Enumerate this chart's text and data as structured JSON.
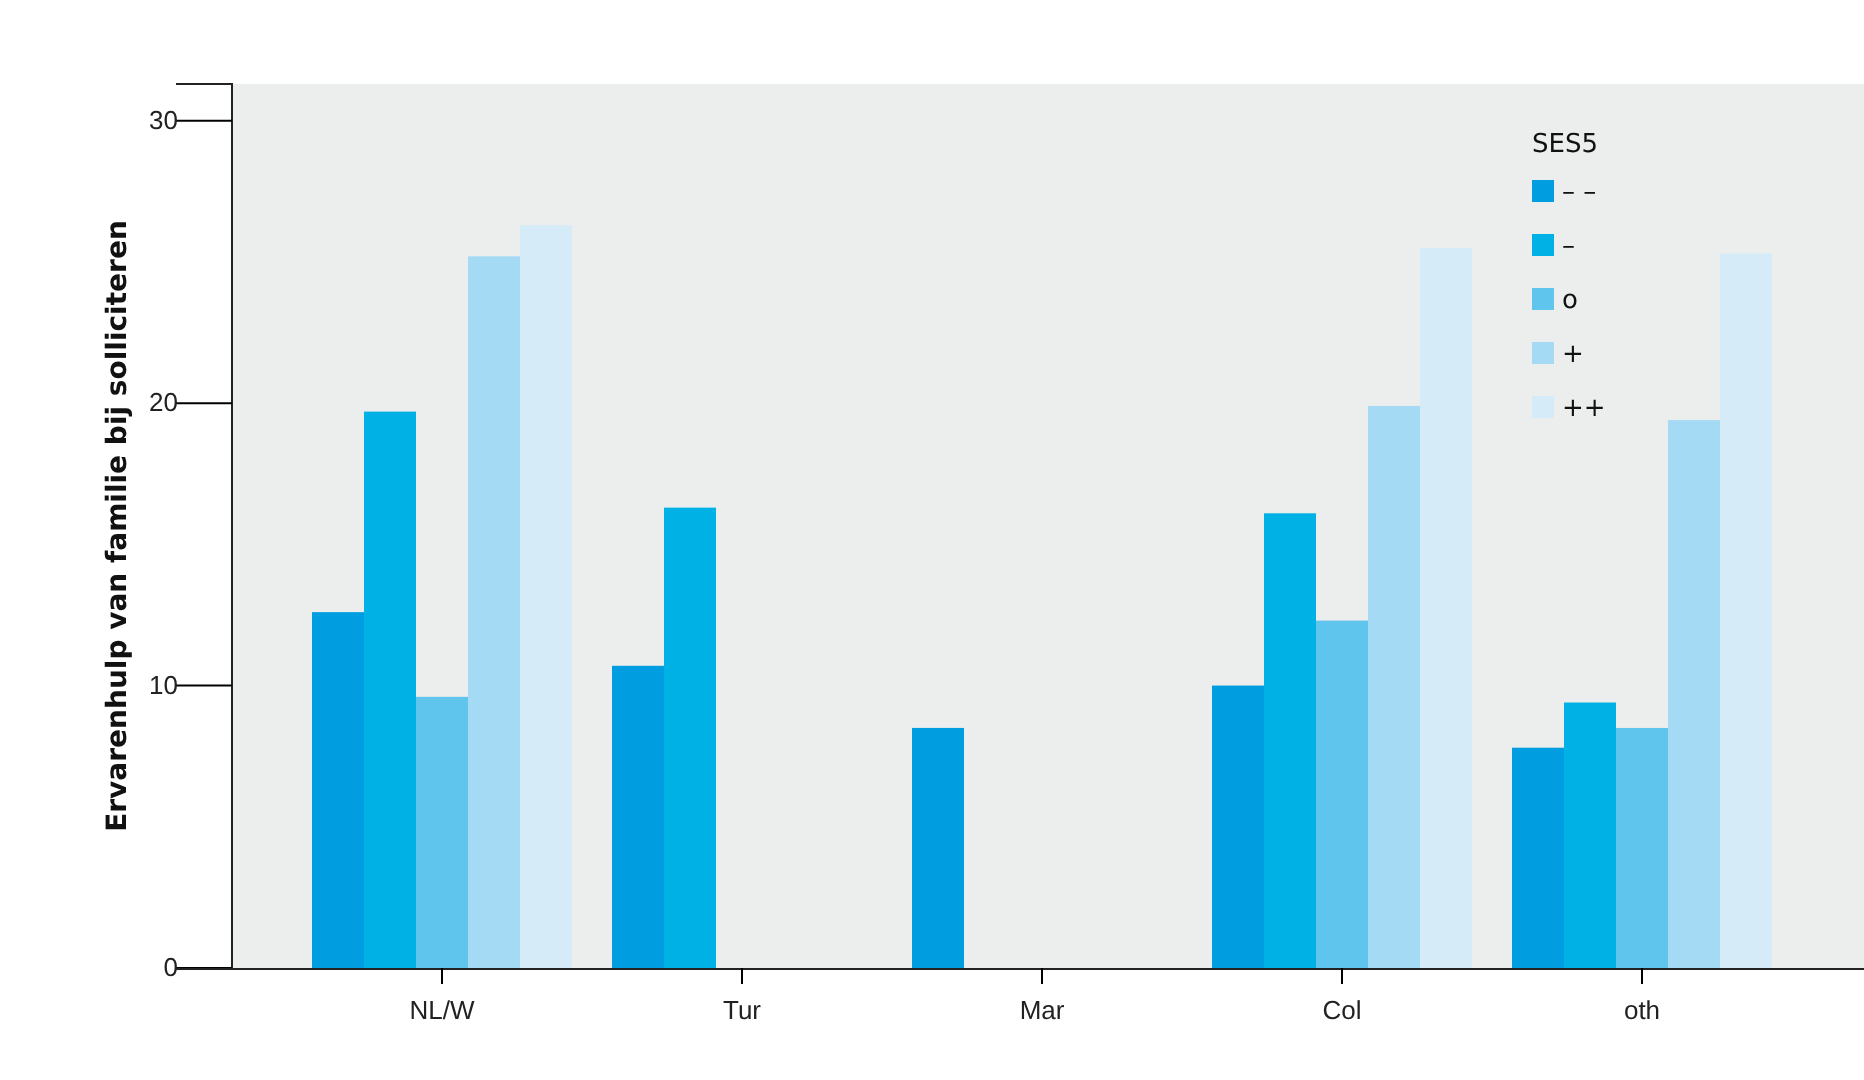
{
  "chart_data": {
    "type": "bar",
    "ylabel": "Ervarenhulp van familie bij solliciteren",
    "legend_title": "SES5",
    "legend": "top right",
    "categories": [
      "NL/W",
      "Tur",
      "Mar",
      "Col",
      "oth"
    ],
    "ylim": [
      0,
      31.3
    ],
    "yticks": [
      0,
      10,
      20,
      30
    ],
    "grid": false,
    "series": [
      {
        "name": "– –",
        "color": "#009ee0",
        "values": [
          12.6,
          10.7,
          8.5,
          10.0,
          7.8
        ]
      },
      {
        "name": "–",
        "color": "#00b1e6",
        "values": [
          19.7,
          16.3,
          null,
          16.1,
          9.4
        ]
      },
      {
        "name": "o",
        "color": "#5fc5ec",
        "values": [
          9.6,
          null,
          null,
          12.3,
          8.5
        ]
      },
      {
        "name": "+",
        "color": "#a4daf4",
        "values": [
          25.2,
          null,
          null,
          19.9,
          19.4
        ]
      },
      {
        "name": "++",
        "color": "#d5ebf8",
        "values": [
          26.3,
          null,
          null,
          25.5,
          25.3
        ]
      }
    ]
  }
}
